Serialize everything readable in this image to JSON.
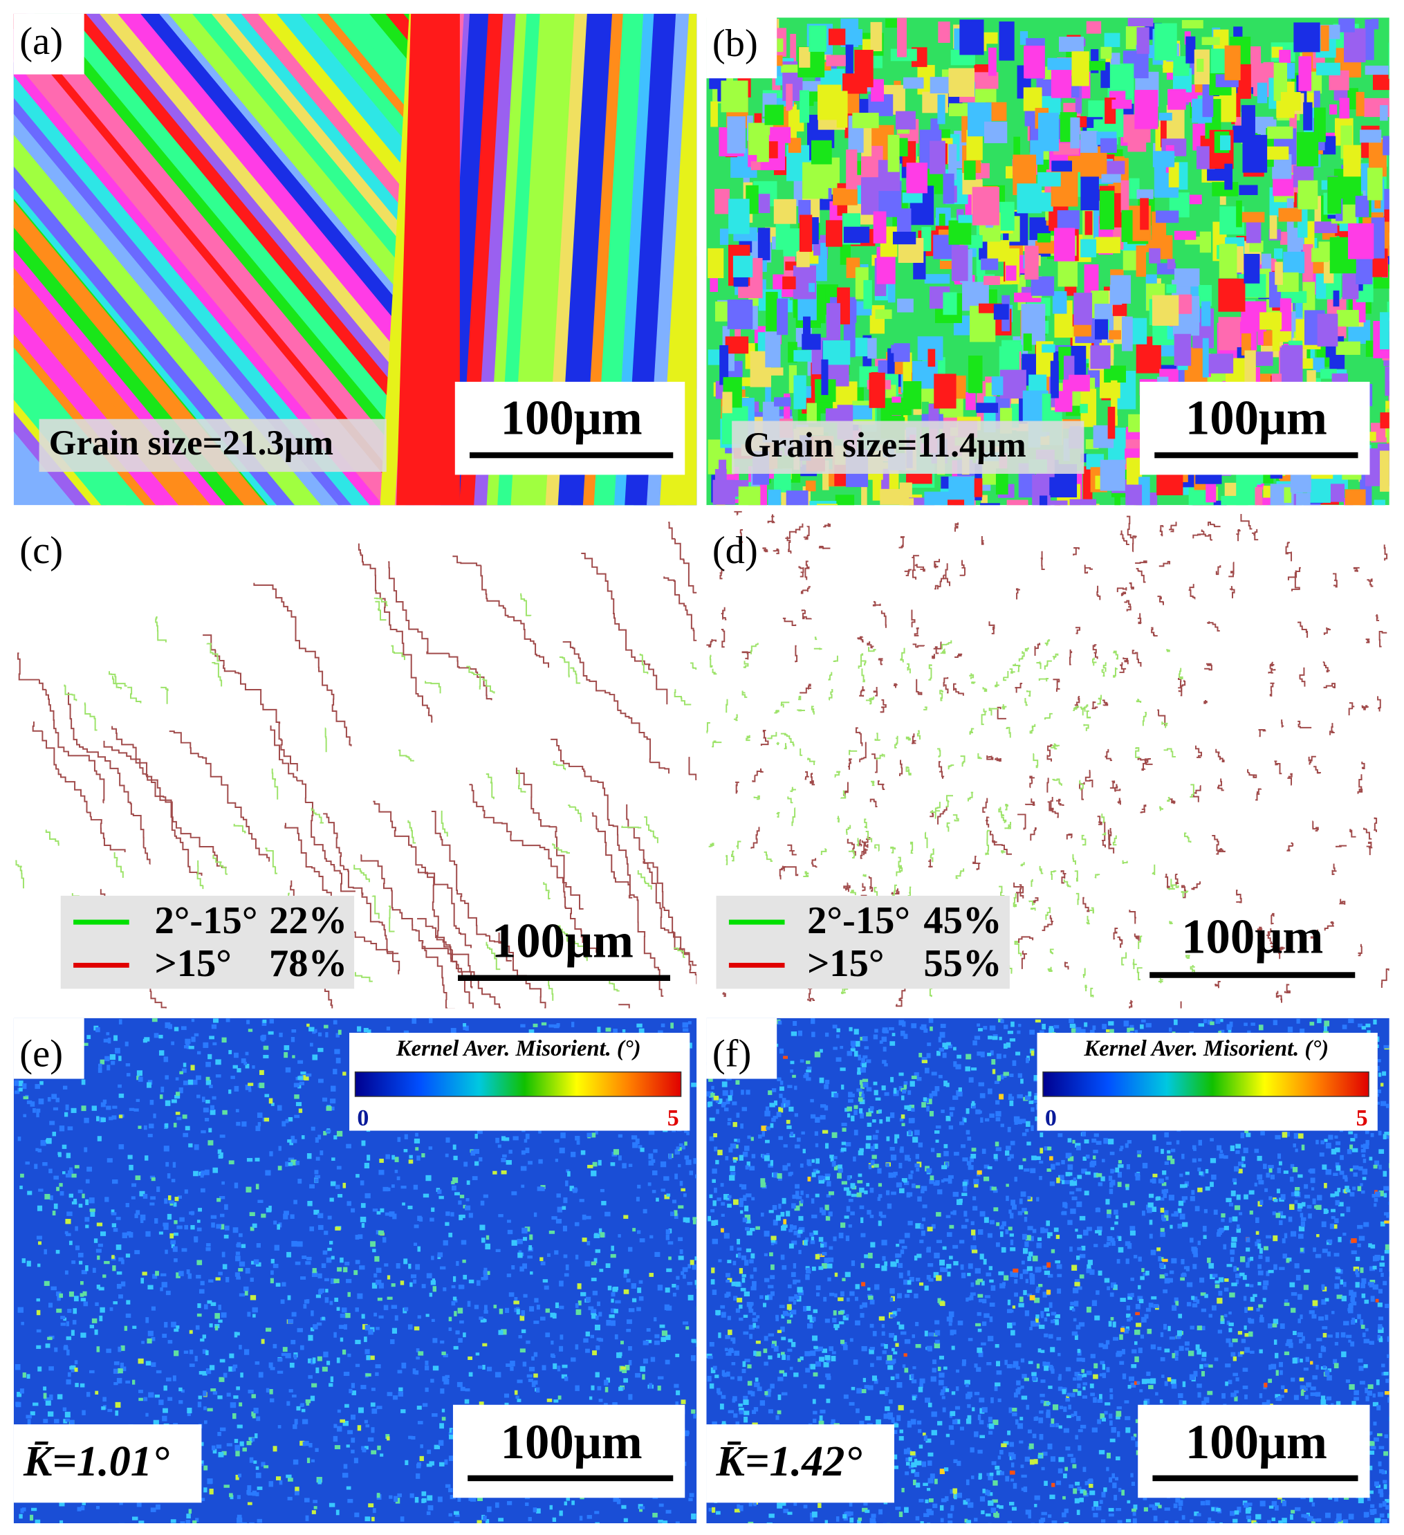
{
  "panels": [
    {
      "label": "(a)",
      "grain_size": "Grain size=21.3μm",
      "scale_bar": "100μm"
    },
    {
      "label": "(b)",
      "grain_size": "Grain size=11.4μm",
      "scale_bar": "100μm"
    },
    {
      "label": "(c)",
      "scale_bar": "100μm",
      "legend": [
        {
          "angle": "2°-15°",
          "fraction": "22%"
        },
        {
          "angle": ">15°",
          "fraction": "78%"
        }
      ]
    },
    {
      "label": "(d)",
      "scale_bar": "100μm",
      "legend": [
        {
          "angle": "2°-15°",
          "fraction": "45%"
        },
        {
          "angle": ">15°",
          "fraction": "55%"
        }
      ]
    },
    {
      "label": "(e)",
      "scale_bar": "100μm",
      "colorbar": {
        "title": "Kernel Aver. Misorient. (°)",
        "min": 0,
        "max": 5
      },
      "mean": "K̄=1.01°"
    },
    {
      "label": "(f)",
      "scale_bar": "100μm",
      "colorbar": {
        "title": "Kernel Aver. Misorient. (°)",
        "min": 0,
        "max": 5
      },
      "mean": "K̄=1.42°"
    }
  ]
}
